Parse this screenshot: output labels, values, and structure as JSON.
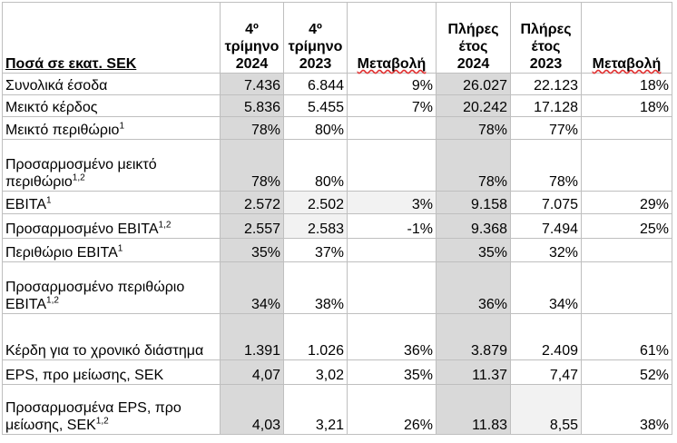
{
  "table": {
    "header": {
      "label": "Ποσά σε εκατ. SEK",
      "columns": [
        {
          "top": "4º τρίμηνο",
          "bottom": "2024"
        },
        {
          "top": "4º τρίμηνο",
          "bottom": "2023"
        },
        {
          "top": null,
          "bottom": "Μεταβολή"
        },
        {
          "top": "Πλήρες έτος",
          "bottom": "2024"
        },
        {
          "top": "Πλήρες έτος",
          "bottom": "2023"
        },
        {
          "top": null,
          "bottom": "Μεταβολή"
        }
      ]
    },
    "rows": [
      {
        "label": "Συνολικά έσοδα",
        "note": null,
        "values": [
          "7.436",
          "6.844",
          "9%",
          "26.027",
          "22.123",
          "18%"
        ]
      },
      {
        "label": "Μεικτό κέρδος",
        "note": null,
        "values": [
          "5.836",
          "5.455",
          "7%",
          "20.242",
          "17.128",
          "18%"
        ]
      },
      {
        "label": "Μεικτό περιθώριο",
        "note": "1",
        "values": [
          "78%",
          "80%",
          null,
          "78%",
          "77%",
          null
        ]
      },
      {
        "label": "Προσαρμοσμένο μεικτό περιθώριο",
        "note": "1,2",
        "values": [
          "78%",
          "80%",
          null,
          "78%",
          "78%",
          null
        ]
      },
      {
        "label": "EBITA",
        "note": "1",
        "values": [
          "2.572",
          "2.502",
          "3%",
          "9.158",
          "7.075",
          "29%"
        ]
      },
      {
        "label": "Προσαρμοσμένο EBITA",
        "note": "1,2",
        "values": [
          "2.557",
          "2.583",
          "-1%",
          "9.368",
          "7.494",
          "25%"
        ]
      },
      {
        "label": "Περιθώριο EBITA",
        "note": "1",
        "values": [
          "35%",
          "37%",
          null,
          "35%",
          "32%",
          null
        ]
      },
      {
        "label": "Προσαρμοσμένο περιθώριο EBITA",
        "note": "1,2",
        "values": [
          "34%",
          "38%",
          null,
          "36%",
          "34%",
          null
        ]
      },
      {
        "label": "Κέρδη για το χρονικό διάστημα",
        "note": null,
        "values": [
          "1.391",
          "1.026",
          "36%",
          "3.879",
          "2.409",
          "61%"
        ]
      },
      {
        "label": "EPS, προ μείωσης, SEK",
        "note": null,
        "values": [
          "4,07",
          "3,02",
          "35%",
          "11.37",
          "7,47",
          "52%"
        ]
      },
      {
        "label": "Προσαρμοσμένα EPS, προ μείωσης, SEK",
        "note": "1,2",
        "values": [
          "4,03",
          "3,21",
          "26%",
          "11.83",
          "8,55",
          "38%"
        ]
      }
    ]
  }
}
